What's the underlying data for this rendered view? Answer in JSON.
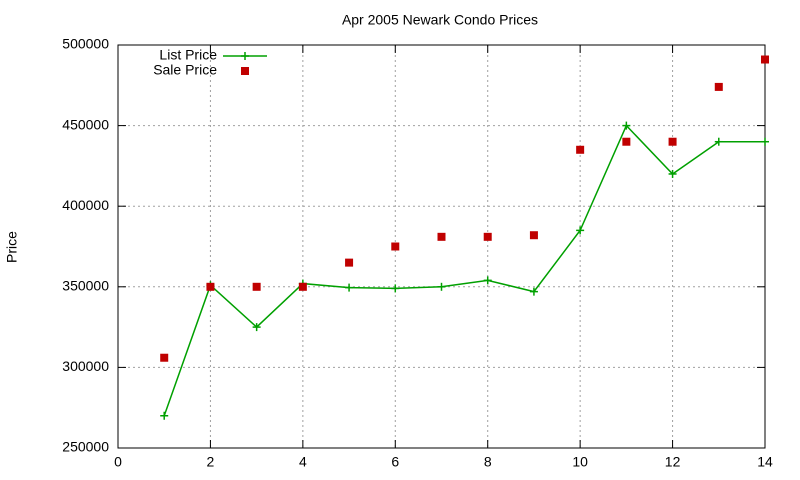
{
  "chart_data": {
    "type": "line",
    "title": "Apr 2005 Newark Condo Prices",
    "y_label": "Price",
    "x": [
      1,
      2,
      3,
      4,
      5,
      6,
      7,
      8,
      9,
      10,
      11,
      12,
      13,
      14
    ],
    "series": [
      {
        "name": "List Price",
        "color": "#00a000",
        "style": "linespoints",
        "values": [
          270000,
          351000,
          325000,
          352000,
          349500,
          349000,
          350000,
          354000,
          347000,
          385000,
          450000,
          420000,
          440000,
          440000
        ]
      },
      {
        "name": "Sale Price",
        "color": "#c00000",
        "style": "points",
        "values": [
          306000,
          350000,
          350000,
          350000,
          365000,
          375000,
          381000,
          381000,
          382000,
          435000,
          440000,
          440000,
          474000,
          491000
        ]
      }
    ],
    "xlim": [
      0,
      14
    ],
    "xticks": [
      0,
      2,
      4,
      6,
      8,
      10,
      12,
      14
    ],
    "ylim": [
      250000,
      500000
    ],
    "yticks": [
      250000,
      300000,
      350000,
      400000,
      450000,
      500000
    ],
    "grid": true,
    "legend": "top-left"
  }
}
